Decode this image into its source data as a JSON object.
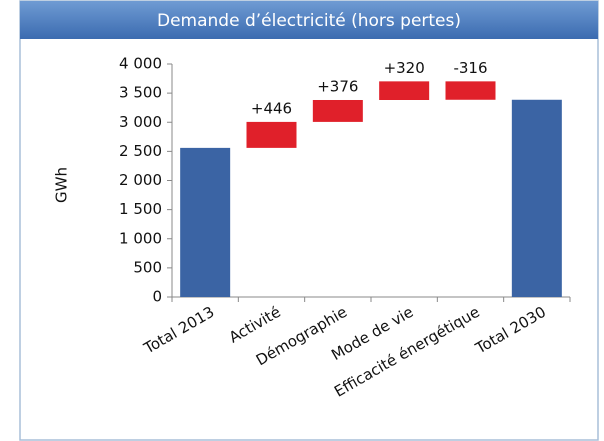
{
  "chart_data": {
    "type": "waterfall",
    "title": "Demande d’électricité (hors pertes)",
    "y_label": "GWh",
    "categories": [
      "Total 2013",
      "Activité",
      "Démographie",
      "Mode de vie",
      "Efficacité énergétique",
      "Total 2030"
    ],
    "values": [
      2560,
      446,
      376,
      320,
      -316,
      3386
    ],
    "value_labels": [
      null,
      "+446",
      "+376",
      "+320",
      "-316",
      null
    ],
    "total_color": "#3b64a4",
    "change_color": "#e0202a",
    "ylim": [
      0,
      4000
    ],
    "yticks": [
      0,
      500,
      {
        "value": 1000,
        "label": "1 000"
      },
      {
        "value": 1500,
        "label": "1 500"
      },
      {
        "value": 2000,
        "label": "2 000"
      },
      {
        "value": 2500,
        "label": "2 500"
      },
      {
        "value": 3000,
        "label": "3 000"
      },
      {
        "value": 3500,
        "label": "3 500"
      },
      {
        "value": 4000,
        "label": "4 000"
      }
    ],
    "grid": false
  }
}
